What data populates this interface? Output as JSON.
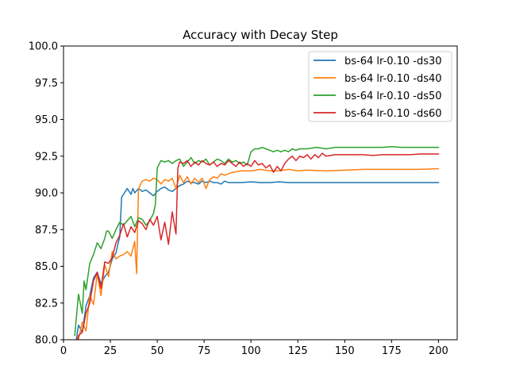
{
  "chart_data": {
    "type": "line",
    "title": "Accuracy with Decay Step",
    "xlabel": "",
    "ylabel": "",
    "xlim": [
      0,
      210
    ],
    "ylim": [
      80.0,
      100.0
    ],
    "xticks": [
      0,
      25,
      50,
      75,
      100,
      125,
      150,
      175,
      200
    ],
    "xtick_labels": [
      "0",
      "25",
      "50",
      "75",
      "100",
      "125",
      "150",
      "175",
      "200"
    ],
    "yticks": [
      80.0,
      82.5,
      85.0,
      87.5,
      90.0,
      92.5,
      95.0,
      97.5,
      100.0
    ],
    "ytick_labels": [
      "80.0",
      "82.5",
      "85.0",
      "87.5",
      "90.0",
      "92.5",
      "95.0",
      "97.5",
      "100.0"
    ],
    "grid": false,
    "legend_position": "top-right",
    "series": [
      {
        "name": "bs-64 lr-0.10 -ds30",
        "color": "#1f77b4",
        "points": [
          [
            6,
            79.3
          ],
          [
            8,
            81.0
          ],
          [
            10,
            80.5
          ],
          [
            12,
            82.3
          ],
          [
            14,
            83.0
          ],
          [
            16,
            84.2
          ],
          [
            18,
            84.6
          ],
          [
            20,
            83.8
          ],
          [
            22,
            84.3
          ],
          [
            24,
            84.6
          ],
          [
            26,
            85.5
          ],
          [
            28,
            85.9
          ],
          [
            29,
            86.5
          ],
          [
            30,
            87.0
          ],
          [
            31,
            89.7
          ],
          [
            32,
            89.9
          ],
          [
            34,
            90.3
          ],
          [
            35,
            90.1
          ],
          [
            36,
            89.9
          ],
          [
            37,
            90.3
          ],
          [
            38,
            90.0
          ],
          [
            40,
            90.3
          ],
          [
            42,
            90.1
          ],
          [
            44,
            90.2
          ],
          [
            46,
            90.0
          ],
          [
            48,
            89.8
          ],
          [
            50,
            90.1
          ],
          [
            52,
            90.3
          ],
          [
            54,
            90.4
          ],
          [
            56,
            90.2
          ],
          [
            58,
            90.1
          ],
          [
            60,
            90.3
          ],
          [
            62,
            90.5
          ],
          [
            64,
            90.6
          ],
          [
            66,
            90.8
          ],
          [
            68,
            90.7
          ],
          [
            70,
            90.7
          ],
          [
            72,
            90.6
          ],
          [
            74,
            90.8
          ],
          [
            76,
            90.7
          ],
          [
            78,
            90.8
          ],
          [
            80,
            90.7
          ],
          [
            82,
            90.7
          ],
          [
            84,
            90.6
          ],
          [
            86,
            90.8
          ],
          [
            88,
            90.7
          ],
          [
            90,
            90.7
          ],
          [
            95,
            90.7
          ],
          [
            100,
            90.75
          ],
          [
            105,
            90.7
          ],
          [
            110,
            90.7
          ],
          [
            115,
            90.75
          ],
          [
            120,
            90.7
          ],
          [
            125,
            90.7
          ],
          [
            130,
            90.7
          ],
          [
            135,
            90.7
          ],
          [
            140,
            90.7
          ],
          [
            145,
            90.7
          ],
          [
            150,
            90.7
          ],
          [
            160,
            90.7
          ],
          [
            170,
            90.7
          ],
          [
            180,
            90.7
          ],
          [
            190,
            90.7
          ],
          [
            200,
            90.7
          ]
        ]
      },
      {
        "name": "bs-64 lr-0.10 -ds40",
        "color": "#ff7f0e",
        "points": [
          [
            6,
            79.8
          ],
          [
            8,
            80.0
          ],
          [
            10,
            81.2
          ],
          [
            12,
            80.6
          ],
          [
            14,
            83.0
          ],
          [
            16,
            82.4
          ],
          [
            18,
            84.5
          ],
          [
            20,
            83.0
          ],
          [
            22,
            85.1
          ],
          [
            24,
            84.3
          ],
          [
            26,
            86.0
          ],
          [
            28,
            85.5
          ],
          [
            30,
            85.7
          ],
          [
            32,
            85.8
          ],
          [
            34,
            86.0
          ],
          [
            36,
            85.7
          ],
          [
            38,
            86.7
          ],
          [
            39,
            84.5
          ],
          [
            40,
            90.3
          ],
          [
            42,
            90.8
          ],
          [
            44,
            90.9
          ],
          [
            46,
            90.8
          ],
          [
            48,
            91.0
          ],
          [
            50,
            90.9
          ],
          [
            52,
            90.6
          ],
          [
            54,
            90.9
          ],
          [
            56,
            90.8
          ],
          [
            58,
            91.0
          ],
          [
            60,
            90.3
          ],
          [
            62,
            91.2
          ],
          [
            64,
            90.7
          ],
          [
            66,
            91.1
          ],
          [
            68,
            90.6
          ],
          [
            70,
            91.0
          ],
          [
            72,
            90.7
          ],
          [
            74,
            91.0
          ],
          [
            76,
            90.3
          ],
          [
            78,
            90.9
          ],
          [
            80,
            91.1
          ],
          [
            82,
            91.0
          ],
          [
            84,
            91.3
          ],
          [
            86,
            91.2
          ],
          [
            88,
            91.3
          ],
          [
            90,
            91.4
          ],
          [
            95,
            91.5
          ],
          [
            100,
            91.5
          ],
          [
            105,
            91.6
          ],
          [
            110,
            91.5
          ],
          [
            115,
            91.5
          ],
          [
            120,
            91.6
          ],
          [
            125,
            91.5
          ],
          [
            130,
            91.55
          ],
          [
            140,
            91.5
          ],
          [
            150,
            91.55
          ],
          [
            160,
            91.6
          ],
          [
            170,
            91.6
          ],
          [
            180,
            91.6
          ],
          [
            190,
            91.6
          ],
          [
            200,
            91.65
          ]
        ]
      },
      {
        "name": "bs-64 lr-0.10 -ds50",
        "color": "#2ca02c",
        "points": [
          [
            6,
            80.3
          ],
          [
            8,
            83.1
          ],
          [
            10,
            81.8
          ],
          [
            11,
            84.0
          ],
          [
            12,
            83.4
          ],
          [
            14,
            85.2
          ],
          [
            16,
            85.8
          ],
          [
            18,
            86.6
          ],
          [
            20,
            86.2
          ],
          [
            22,
            86.9
          ],
          [
            23,
            87.4
          ],
          [
            24,
            87.4
          ],
          [
            26,
            86.9
          ],
          [
            28,
            87.5
          ],
          [
            30,
            88.0
          ],
          [
            32,
            87.8
          ],
          [
            34,
            88.1
          ],
          [
            36,
            88.4
          ],
          [
            38,
            87.7
          ],
          [
            40,
            88.3
          ],
          [
            42,
            88.2
          ],
          [
            44,
            87.8
          ],
          [
            46,
            88.1
          ],
          [
            48,
            88.6
          ],
          [
            49,
            89.2
          ],
          [
            50,
            91.7
          ],
          [
            52,
            92.2
          ],
          [
            54,
            92.1
          ],
          [
            56,
            92.2
          ],
          [
            58,
            92.0
          ],
          [
            60,
            92.2
          ],
          [
            62,
            92.3
          ],
          [
            64,
            91.8
          ],
          [
            66,
            92.1
          ],
          [
            68,
            92.4
          ],
          [
            70,
            92.0
          ],
          [
            72,
            92.2
          ],
          [
            74,
            92.1
          ],
          [
            76,
            92.3
          ],
          [
            78,
            91.9
          ],
          [
            80,
            92.1
          ],
          [
            82,
            92.3
          ],
          [
            84,
            92.2
          ],
          [
            86,
            92.0
          ],
          [
            88,
            92.3
          ],
          [
            90,
            92.1
          ],
          [
            92,
            92.2
          ],
          [
            94,
            92.0
          ],
          [
            96,
            92.1
          ],
          [
            98,
            91.9
          ],
          [
            100,
            92.8
          ],
          [
            102,
            93.0
          ],
          [
            104,
            93.0
          ],
          [
            106,
            93.1
          ],
          [
            108,
            93.0
          ],
          [
            110,
            92.9
          ],
          [
            112,
            92.8
          ],
          [
            114,
            92.9
          ],
          [
            116,
            92.8
          ],
          [
            118,
            92.9
          ],
          [
            120,
            92.8
          ],
          [
            122,
            93.0
          ],
          [
            124,
            92.9
          ],
          [
            126,
            93.0
          ],
          [
            130,
            93.0
          ],
          [
            135,
            93.1
          ],
          [
            140,
            93.0
          ],
          [
            145,
            93.1
          ],
          [
            150,
            93.1
          ],
          [
            155,
            93.1
          ],
          [
            160,
            93.1
          ],
          [
            165,
            93.1
          ],
          [
            170,
            93.1
          ],
          [
            175,
            93.15
          ],
          [
            180,
            93.1
          ],
          [
            185,
            93.1
          ],
          [
            190,
            93.1
          ],
          [
            195,
            93.1
          ],
          [
            200,
            93.1
          ]
        ]
      },
      {
        "name": "bs-64 lr-0.10 -ds60",
        "color": "#d62728",
        "points": [
          [
            6,
            79.2
          ],
          [
            8,
            80.3
          ],
          [
            10,
            80.5
          ],
          [
            12,
            81.8
          ],
          [
            14,
            82.5
          ],
          [
            16,
            84.0
          ],
          [
            18,
            84.6
          ],
          [
            20,
            83.5
          ],
          [
            22,
            85.3
          ],
          [
            24,
            85.2
          ],
          [
            26,
            85.6
          ],
          [
            28,
            86.6
          ],
          [
            30,
            87.1
          ],
          [
            32,
            87.9
          ],
          [
            34,
            87.0
          ],
          [
            36,
            87.7
          ],
          [
            38,
            87.3
          ],
          [
            40,
            88.1
          ],
          [
            42,
            87.9
          ],
          [
            44,
            87.5
          ],
          [
            46,
            88.2
          ],
          [
            48,
            87.8
          ],
          [
            50,
            88.4
          ],
          [
            52,
            86.8
          ],
          [
            54,
            88.0
          ],
          [
            56,
            86.5
          ],
          [
            58,
            88.7
          ],
          [
            60,
            87.2
          ],
          [
            61,
            91.7
          ],
          [
            62,
            92.1
          ],
          [
            64,
            92.0
          ],
          [
            66,
            92.2
          ],
          [
            68,
            91.8
          ],
          [
            70,
            92.1
          ],
          [
            72,
            91.9
          ],
          [
            74,
            92.2
          ],
          [
            76,
            92.0
          ],
          [
            78,
            91.9
          ],
          [
            80,
            92.1
          ],
          [
            82,
            91.8
          ],
          [
            84,
            92.0
          ],
          [
            86,
            91.9
          ],
          [
            88,
            92.2
          ],
          [
            90,
            92.0
          ],
          [
            92,
            91.8
          ],
          [
            94,
            92.1
          ],
          [
            96,
            91.8
          ],
          [
            98,
            92.0
          ],
          [
            100,
            91.8
          ],
          [
            102,
            92.2
          ],
          [
            104,
            91.9
          ],
          [
            106,
            92.0
          ],
          [
            108,
            91.7
          ],
          [
            110,
            91.9
          ],
          [
            112,
            91.4
          ],
          [
            114,
            91.8
          ],
          [
            116,
            91.5
          ],
          [
            118,
            92.0
          ],
          [
            120,
            92.3
          ],
          [
            122,
            92.5
          ],
          [
            124,
            92.2
          ],
          [
            126,
            92.5
          ],
          [
            128,
            92.4
          ],
          [
            130,
            92.6
          ],
          [
            132,
            92.3
          ],
          [
            134,
            92.6
          ],
          [
            136,
            92.4
          ],
          [
            138,
            92.7
          ],
          [
            140,
            92.5
          ],
          [
            145,
            92.6
          ],
          [
            150,
            92.6
          ],
          [
            155,
            92.6
          ],
          [
            160,
            92.6
          ],
          [
            165,
            92.55
          ],
          [
            170,
            92.6
          ],
          [
            175,
            92.6
          ],
          [
            180,
            92.6
          ],
          [
            185,
            92.6
          ],
          [
            190,
            92.65
          ],
          [
            195,
            92.65
          ],
          [
            200,
            92.65
          ]
        ]
      }
    ]
  }
}
